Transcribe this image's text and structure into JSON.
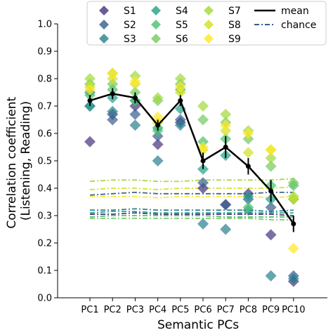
{
  "chart_data": {
    "type": "scatter",
    "xlabel": "Semantic PCs",
    "ylabel_lines": [
      "Correlation coefficient",
      "(Listening, Reading)"
    ],
    "ylim": [
      0.0,
      1.0
    ],
    "yticks": [
      "0.0",
      "0.1",
      "0.2",
      "0.3",
      "0.4",
      "0.5",
      "0.6",
      "0.7",
      "0.8",
      "0.9",
      "1.0"
    ],
    "categories": [
      "PC1",
      "PC2",
      "PC3",
      "PC4",
      "PC5",
      "PC6",
      "PC7",
      "PC8",
      "PC9",
      "PC10"
    ],
    "legend_position": "top",
    "series": [
      {
        "name": "S1",
        "color": "#46327e",
        "values": [
          0.57,
          0.67,
          0.7,
          0.56,
          0.64,
          0.4,
          0.34,
          0.38,
          0.23,
          0.06
        ]
      },
      {
        "name": "S2",
        "color": "#365c8d",
        "values": [
          0.7,
          0.65,
          0.67,
          0.59,
          0.65,
          0.42,
          0.34,
          0.36,
          0.33,
          0.08
        ]
      },
      {
        "name": "S3",
        "color": "#277f8e",
        "values": [
          0.75,
          0.68,
          0.63,
          0.5,
          0.63,
          0.27,
          0.25,
          0.32,
          0.08,
          0.07
        ]
      },
      {
        "name": "S4",
        "color": "#1fa187",
        "values": [
          0.7,
          0.73,
          0.72,
          0.62,
          0.69,
          0.47,
          0.52,
          0.37,
          0.36,
          0.36
        ]
      },
      {
        "name": "S5",
        "color": "#4ac16d",
        "values": [
          0.74,
          0.76,
          0.72,
          0.61,
          0.76,
          0.57,
          0.58,
          0.33,
          0.41,
          0.41
        ]
      },
      {
        "name": "S6",
        "color": "#74c95e",
        "values": [
          0.78,
          0.78,
          0.75,
          0.72,
          0.78,
          0.65,
          0.64,
          0.58,
          0.48,
          0.42
        ]
      },
      {
        "name": "S7",
        "color": "#a0da39",
        "values": [
          0.8,
          0.82,
          0.81,
          0.73,
          0.8,
          0.7,
          0.67,
          0.61,
          0.51,
          0.37
        ]
      },
      {
        "name": "S8",
        "color": "#d0e11c",
        "values": [
          0.77,
          0.8,
          0.78,
          0.64,
          0.75,
          0.54,
          0.61,
          0.53,
          0.54,
          0.36
        ]
      },
      {
        "name": "S9",
        "color": "#fde725",
        "values": [
          0.76,
          0.82,
          0.79,
          0.66,
          0.77,
          0.55,
          0.63,
          0.6,
          0.54,
          0.18
        ]
      }
    ],
    "mean": {
      "name": "mean",
      "color": "#000000",
      "values": [
        0.72,
        0.745,
        0.73,
        0.63,
        0.72,
        0.5,
        0.55,
        0.48,
        0.39,
        0.27
      ],
      "errors": [
        0.02,
        0.02,
        0.02,
        0.02,
        0.02,
        0.03,
        0.04,
        0.03,
        0.04,
        0.03
      ]
    },
    "chance_label": "chance",
    "chance_lines": [
      {
        "color": "#a0da39",
        "values": [
          0.425,
          0.43,
          0.43,
          0.425,
          0.425,
          0.43,
          0.43,
          0.43,
          0.43,
          0.435
        ]
      },
      {
        "color": "#d0e11c",
        "values": [
          0.395,
          0.4,
          0.4,
          0.395,
          0.4,
          0.4,
          0.4,
          0.4,
          0.4,
          0.405
        ]
      },
      {
        "color": "#365c8d",
        "values": [
          0.375,
          0.38,
          0.385,
          0.38,
          0.38,
          0.38,
          0.38,
          0.38,
          0.385,
          0.385
        ]
      },
      {
        "color": "#fde725",
        "values": [
          0.37,
          0.37,
          0.37,
          0.365,
          0.37,
          0.37,
          0.37,
          0.37,
          0.365,
          0.37
        ]
      },
      {
        "color": "#277f8e",
        "values": [
          0.32,
          0.32,
          0.325,
          0.32,
          0.32,
          0.32,
          0.32,
          0.32,
          0.315,
          0.32
        ]
      },
      {
        "color": "#1fa187",
        "values": [
          0.31,
          0.315,
          0.315,
          0.31,
          0.31,
          0.31,
          0.31,
          0.31,
          0.31,
          0.31
        ]
      },
      {
        "color": "#46327e",
        "values": [
          0.305,
          0.305,
          0.31,
          0.305,
          0.305,
          0.305,
          0.305,
          0.305,
          0.305,
          0.3
        ]
      },
      {
        "color": "#4ac16d",
        "values": [
          0.295,
          0.3,
          0.3,
          0.3,
          0.3,
          0.3,
          0.295,
          0.295,
          0.295,
          0.295
        ]
      },
      {
        "color": "#74c95e",
        "values": [
          0.29,
          0.29,
          0.29,
          0.29,
          0.29,
          0.29,
          0.29,
          0.29,
          0.285,
          0.285
        ]
      }
    ]
  }
}
